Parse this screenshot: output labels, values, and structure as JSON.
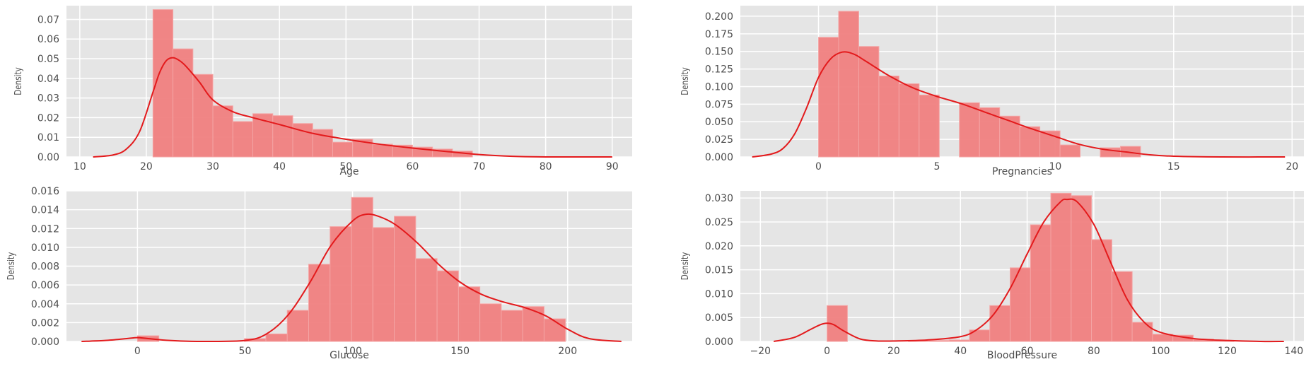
{
  "style": {
    "plot_bg": "#e5e5e5",
    "grid_color": "#ffffff",
    "bar_fill": "#f08080",
    "bar_stroke": "#f4a5a5",
    "kde_color": "#e31a1c",
    "text_color": "#4d4d4d"
  },
  "chart_data": [
    {
      "type": "histogram",
      "xlabel": "Age",
      "ylabel": "Density",
      "xlim": [
        8,
        93
      ],
      "ylim": [
        0,
        0.077
      ],
      "xticks": [
        10,
        20,
        30,
        40,
        50,
        60,
        70,
        80,
        90
      ],
      "xtick_labels": [
        "10",
        "20",
        "30",
        "40",
        "50",
        "60",
        "70",
        "80",
        "90"
      ],
      "yticks": [
        0,
        0.01,
        0.02,
        0.03,
        0.04,
        0.05,
        0.06,
        0.07
      ],
      "ytick_labels": [
        "0.00",
        "0.01",
        "0.02",
        "0.03",
        "0.04",
        "0.05",
        "0.06",
        "0.07"
      ],
      "bin_edges": [
        21,
        24,
        27,
        30,
        33,
        36,
        39,
        42,
        45,
        48,
        51,
        54,
        57,
        60,
        63,
        66,
        69
      ],
      "values": [
        0.075,
        0.055,
        0.042,
        0.026,
        0.018,
        0.022,
        0.021,
        0.017,
        0.014,
        0.0075,
        0.009,
        0.0065,
        0.006,
        0.005,
        0.004,
        0.003
      ],
      "kde": {
        "x": [
          12,
          15,
          17,
          19,
          21,
          22,
          23,
          24,
          25,
          26,
          28,
          30,
          33,
          36,
          40,
          45,
          50,
          55,
          60,
          65,
          70,
          75,
          80,
          90
        ],
        "y": [
          0.0,
          0.001,
          0.004,
          0.013,
          0.033,
          0.043,
          0.049,
          0.0505,
          0.049,
          0.046,
          0.038,
          0.029,
          0.023,
          0.02,
          0.0165,
          0.012,
          0.009,
          0.0065,
          0.0045,
          0.0028,
          0.0012,
          0.0003,
          0.0,
          0.0
        ]
      }
    },
    {
      "type": "histogram",
      "xlabel": "Pregnancies",
      "ylabel": "Density",
      "xlim": [
        -3.3,
        20.5
      ],
      "ylim": [
        0,
        0.215
      ],
      "xticks": [
        0,
        5,
        10,
        15,
        20
      ],
      "xtick_labels": [
        "0",
        "5",
        "10",
        "15",
        "20"
      ],
      "yticks": [
        0,
        0.025,
        0.05,
        0.075,
        0.1,
        0.125,
        0.15,
        0.175,
        0.2
      ],
      "ytick_labels": [
        "0.000",
        "0.025",
        "0.050",
        "0.075",
        "0.100",
        "0.125",
        "0.150",
        "0.175",
        "0.200"
      ],
      "bin_edges": [
        0,
        0.85,
        1.7,
        2.55,
        3.4,
        4.25,
        5.1,
        5.95,
        6.8,
        7.65,
        8.5,
        9.35,
        10.2,
        11.05,
        11.9,
        12.75,
        13.6
      ],
      "values": [
        0.17,
        0.207,
        0.157,
        0.115,
        0.104,
        0.088,
        0.0,
        0.077,
        0.07,
        0.058,
        0.043,
        0.037,
        0.017,
        0.0,
        0.013,
        0.015
      ],
      "kde": {
        "x": [
          -2.8,
          -2,
          -1.5,
          -1,
          -0.5,
          0,
          0.5,
          1,
          1.5,
          2,
          3,
          4,
          5,
          6,
          7,
          8,
          9,
          10,
          11,
          12,
          13,
          14,
          15,
          17,
          19.7
        ],
        "y": [
          0.0,
          0.004,
          0.012,
          0.033,
          0.07,
          0.113,
          0.139,
          0.149,
          0.146,
          0.136,
          0.115,
          0.098,
          0.086,
          0.076,
          0.064,
          0.052,
          0.04,
          0.029,
          0.018,
          0.011,
          0.007,
          0.003,
          0.001,
          0.0,
          0.0
        ]
      }
    },
    {
      "type": "histogram",
      "xlabel": "Glucose",
      "ylabel": "Density",
      "xlim": [
        -33,
        230
      ],
      "ylim": [
        0,
        0.016
      ],
      "xticks": [
        0,
        50,
        100,
        150,
        200
      ],
      "xtick_labels": [
        "0",
        "50",
        "100",
        "150",
        "200"
      ],
      "yticks": [
        0,
        0.002,
        0.004,
        0.006,
        0.008,
        0.01,
        0.012,
        0.014,
        0.016
      ],
      "ytick_labels": [
        "0.000",
        "0.002",
        "0.004",
        "0.006",
        "0.008",
        "0.010",
        "0.012",
        "0.014",
        "0.016"
      ],
      "bin_edges": [
        0,
        9.95,
        19.9,
        29.85,
        39.8,
        49.75,
        59.7,
        69.65,
        79.6,
        89.55,
        99.5,
        109.45,
        119.4,
        129.35,
        139.3,
        149.25,
        159.2,
        169.15,
        179.1,
        189.05,
        199
      ],
      "values": [
        0.0006,
        0,
        0,
        0,
        0,
        0.0003,
        0.0008,
        0.0033,
        0.0082,
        0.0122,
        0.0153,
        0.0121,
        0.0133,
        0.0088,
        0.0075,
        0.0058,
        0.004,
        0.0033,
        0.0037,
        0.0024
      ],
      "kde": {
        "x": [
          -26,
          -15,
          -5,
          0,
          5,
          15,
          30,
          50,
          60,
          70,
          80,
          90,
          100,
          106,
          112,
          120,
          130,
          140,
          150,
          160,
          170,
          180,
          190,
          200,
          210,
          225
        ],
        "y": [
          0.0,
          0.0001,
          0.0003,
          0.0004,
          0.0003,
          0.0001,
          0.0,
          0.0001,
          0.0008,
          0.0028,
          0.0062,
          0.0102,
          0.0128,
          0.0135,
          0.0133,
          0.0124,
          0.0105,
          0.0082,
          0.0063,
          0.005,
          0.0042,
          0.0036,
          0.0027,
          0.0013,
          0.0003,
          0.0
        ]
      }
    },
    {
      "type": "histogram",
      "xlabel": "BloodPressure",
      "ylabel": "Density",
      "xlim": [
        -26,
        143
      ],
      "ylim": [
        0,
        0.0315
      ],
      "xticks": [
        -20,
        0,
        20,
        40,
        60,
        80,
        100,
        120,
        140
      ],
      "xtick_labels": [
        "−20",
        "0",
        "20",
        "40",
        "60",
        "80",
        "100",
        "120",
        "140"
      ],
      "yticks": [
        0,
        0.005,
        0.01,
        0.015,
        0.02,
        0.025,
        0.03
      ],
      "ytick_labels": [
        "0.000",
        "0.005",
        "0.010",
        "0.015",
        "0.020",
        "0.025",
        "0.030"
      ],
      "bin_edges": [
        0,
        6.1,
        12.2,
        18.3,
        24.4,
        30.5,
        36.6,
        42.7,
        48.8,
        54.9,
        61,
        67.1,
        73.2,
        79.3,
        85.4,
        91.5,
        97.6,
        103.7,
        109.8,
        115.9,
        122
      ],
      "values": [
        0.0075,
        0,
        0,
        0,
        0.0002,
        0.0002,
        0.0003,
        0.0024,
        0.0075,
        0.0154,
        0.0244,
        0.031,
        0.0305,
        0.0213,
        0.0146,
        0.004,
        0.0015,
        0.0013,
        0.0005,
        0.0002
      ],
      "kde": {
        "x": [
          -16,
          -10,
          -5,
          -2,
          0,
          2,
          5,
          10,
          15,
          20,
          30,
          40,
          45,
          50,
          55,
          60,
          65,
          70,
          72,
          75,
          80,
          85,
          90,
          95,
          100,
          110,
          120,
          130,
          137
        ],
        "y": [
          0.0,
          0.0008,
          0.0025,
          0.0035,
          0.0038,
          0.0035,
          0.0022,
          0.0005,
          0.0001,
          0.0001,
          0.0003,
          0.001,
          0.0025,
          0.0057,
          0.0112,
          0.0183,
          0.025,
          0.0292,
          0.0297,
          0.0292,
          0.0245,
          0.0166,
          0.0088,
          0.0041,
          0.0019,
          0.0006,
          0.0002,
          0.0,
          0.0
        ]
      }
    }
  ]
}
